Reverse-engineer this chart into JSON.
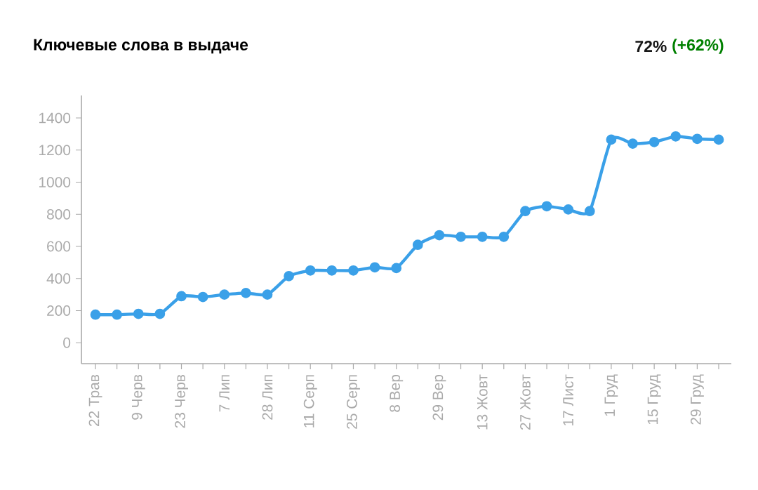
{
  "chart_data": {
    "type": "line",
    "title": "Ключевые слова в выдаче",
    "annotations": [
      "72%",
      "(+62%)"
    ],
    "categories": [
      "22 Трав",
      null,
      "9 Черв",
      null,
      "23 Черв",
      null,
      "7 Лип",
      null,
      "28 Лип",
      null,
      "11 Серп",
      null,
      "25 Серп",
      null,
      "8 Вер",
      null,
      "29 Вер",
      null,
      "13 Жовт",
      null,
      "27 Жовт",
      null,
      "17 Лист",
      null,
      "1 Груд",
      null,
      "15 Груд",
      null,
      "29 Груд",
      null
    ],
    "series": [
      {
        "color": "#3aa0e8",
        "values": [
          175,
          175,
          180,
          180,
          290,
          285,
          300,
          310,
          300,
          415,
          450,
          450,
          450,
          470,
          465,
          610,
          670,
          660,
          660,
          660,
          820,
          850,
          830,
          820,
          1265,
          1240,
          1250,
          1285,
          1270,
          1265
        ]
      }
    ],
    "ylim": [
      -130,
      1540
    ],
    "yticks": [
      0,
      200,
      400,
      600,
      800,
      1000,
      1200,
      1400
    ],
    "grid": false,
    "marker": "circle",
    "line_style": "solid"
  }
}
